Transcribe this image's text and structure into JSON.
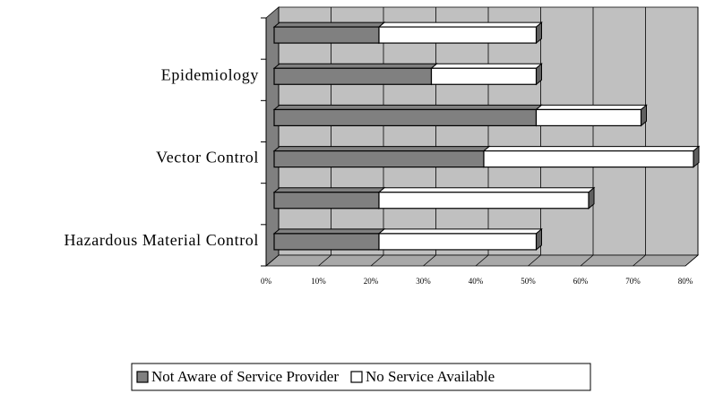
{
  "chart_data": {
    "type": "bar3d_stacked_horizontal",
    "categories": [
      "Hazardous Material Control",
      null,
      "Vector Control",
      null,
      "Epidemiology",
      null
    ],
    "series": [
      {
        "name": "Not Aware of Service Provider",
        "color": "#808080",
        "values": [
          20,
          20,
          40,
          50,
          30,
          20
        ]
      },
      {
        "name": "No Service Available",
        "color": "#ffffff",
        "values": [
          30,
          40,
          40,
          20,
          20,
          30
        ]
      }
    ],
    "xlim": [
      0,
      80
    ],
    "xticks": [
      {
        "value": 0,
        "label": "0%"
      },
      {
        "value": 10,
        "label": "10%"
      },
      {
        "value": 20,
        "label": "20%"
      },
      {
        "value": 30,
        "label": "30%"
      },
      {
        "value": 40,
        "label": "40%"
      },
      {
        "value": 50,
        "label": "50%"
      },
      {
        "value": 60,
        "label": "60%"
      },
      {
        "value": 70,
        "label": "70%"
      },
      {
        "value": 80,
        "label": "80%"
      }
    ],
    "grid": true,
    "legend": "bottom"
  }
}
